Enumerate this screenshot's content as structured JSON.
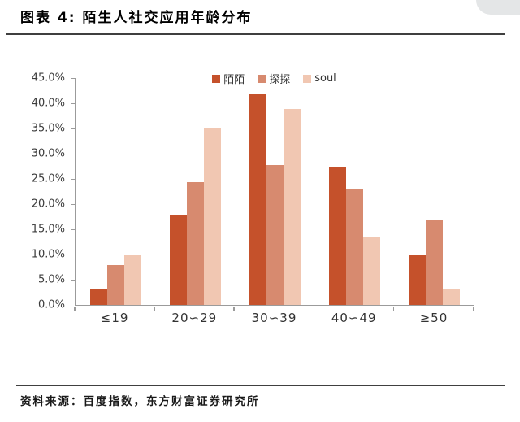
{
  "header": {
    "title": "图表 4: 陌生人社交应用年龄分布"
  },
  "chart_data": {
    "type": "bar",
    "title": "陌生人社交应用年龄分布",
    "categories": [
      "≤19",
      "20∽29",
      "30∽39",
      "40∽49",
      "≥50"
    ],
    "series": [
      {
        "key": "momo",
        "name": "陌陌",
        "color": "#C5512B",
        "values": [
          3.2,
          17.8,
          42.0,
          27.3,
          9.9
        ]
      },
      {
        "key": "tantan",
        "name": "探探",
        "color": "#D78A6F",
        "values": [
          7.9,
          24.4,
          27.8,
          23.0,
          16.9
        ]
      },
      {
        "key": "soul",
        "name": "soul",
        "color": "#F1C7B2",
        "values": [
          9.8,
          35.0,
          38.8,
          13.6,
          3.2
        ]
      }
    ],
    "xlabel": "",
    "ylabel": "",
    "ylim": [
      0,
      45
    ],
    "ytick_step": 5,
    "ytick_labels": [
      "0.0%",
      "5.0%",
      "10.0%",
      "15.0%",
      "20.0%",
      "25.0%",
      "30.0%",
      "35.0%",
      "40.0%",
      "45.0%"
    ],
    "grid": false,
    "legend_position": "top-center"
  },
  "footer": {
    "source": "资料来源：百度指数，东方财富证券研究所"
  }
}
